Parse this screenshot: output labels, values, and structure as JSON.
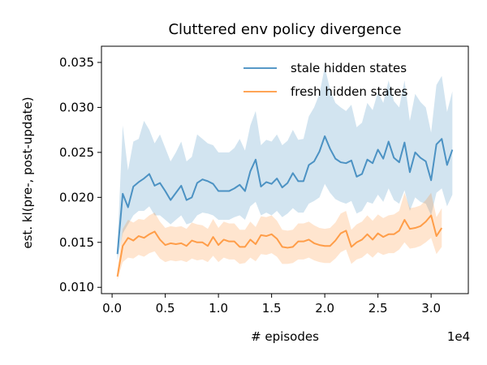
{
  "chart_data": {
    "type": "line",
    "title": "Cluttered env policy divergence",
    "xlabel": "# episodes",
    "ylabel": "est. kl(pre-, post-update)",
    "x_offset_label": "1e4",
    "xlim": [
      -0.1,
      3.35
    ],
    "ylim": [
      0.0093,
      0.0368
    ],
    "x_ticks": [
      0.0,
      0.5,
      1.0,
      1.5,
      2.0,
      2.5,
      3.0
    ],
    "x_tick_labels": [
      "0.0",
      "0.5",
      "1.0",
      "1.5",
      "2.0",
      "2.5",
      "3.0"
    ],
    "y_ticks": [
      0.01,
      0.015,
      0.02,
      0.025,
      0.03,
      0.035
    ],
    "y_tick_labels": [
      "0.010",
      "0.015",
      "0.020",
      "0.025",
      "0.030",
      "0.035"
    ],
    "grid": false,
    "legend_position": "top-right",
    "series": [
      {
        "name": "stale hidden states",
        "color": "#1f77b4",
        "line_alpha": 0.75,
        "band_alpha": 0.2,
        "x": [
          0.05,
          0.1,
          0.15,
          0.2,
          0.25,
          0.3,
          0.35,
          0.4,
          0.45,
          0.5,
          0.55,
          0.6,
          0.65,
          0.7,
          0.75,
          0.8,
          0.85,
          0.9,
          0.95,
          1.0,
          1.05,
          1.1,
          1.15,
          1.2,
          1.25,
          1.3,
          1.35,
          1.4,
          1.45,
          1.5,
          1.55,
          1.6,
          1.65,
          1.7,
          1.75,
          1.8,
          1.85,
          1.9,
          1.95,
          2.0,
          2.05,
          2.1,
          2.15,
          2.2,
          2.25,
          2.3,
          2.35,
          2.4,
          2.45,
          2.5,
          2.55,
          2.6,
          2.65,
          2.7,
          2.75,
          2.8,
          2.85,
          2.9,
          2.95,
          3.0,
          3.05,
          3.1,
          3.15,
          3.2
        ],
        "y": [
          0.0137,
          0.0204,
          0.0189,
          0.0212,
          0.0217,
          0.0221,
          0.0226,
          0.0213,
          0.0216,
          0.0207,
          0.0197,
          0.0205,
          0.0213,
          0.0197,
          0.02,
          0.0216,
          0.022,
          0.0218,
          0.0215,
          0.0207,
          0.0207,
          0.0207,
          0.021,
          0.0214,
          0.0207,
          0.0229,
          0.0242,
          0.0212,
          0.0217,
          0.0215,
          0.0221,
          0.0211,
          0.0216,
          0.0227,
          0.0218,
          0.0218,
          0.0236,
          0.024,
          0.0251,
          0.0268,
          0.0254,
          0.0243,
          0.0239,
          0.0238,
          0.0241,
          0.0223,
          0.0226,
          0.0242,
          0.0238,
          0.0253,
          0.0243,
          0.0262,
          0.0244,
          0.0239,
          0.0261,
          0.0228,
          0.025,
          0.0244,
          0.024,
          0.0219,
          0.0259,
          0.0265,
          0.0236,
          0.0253
        ],
        "lower": [
          0.013,
          0.016,
          0.017,
          0.018,
          0.0185,
          0.0185,
          0.019,
          0.018,
          0.018,
          0.0175,
          0.017,
          0.0175,
          0.018,
          0.017,
          0.0172,
          0.018,
          0.0183,
          0.0182,
          0.018,
          0.0175,
          0.0175,
          0.0175,
          0.0178,
          0.018,
          0.0175,
          0.019,
          0.0195,
          0.018,
          0.0183,
          0.018,
          0.0185,
          0.0178,
          0.0182,
          0.0188,
          0.0183,
          0.0183,
          0.0193,
          0.0196,
          0.02,
          0.0215,
          0.0205,
          0.0198,
          0.0195,
          0.0193,
          0.0196,
          0.0182,
          0.0185,
          0.0195,
          0.0193,
          0.0203,
          0.0195,
          0.021,
          0.0197,
          0.0193,
          0.0208,
          0.0185,
          0.02,
          0.0195,
          0.0193,
          0.018,
          0.0205,
          0.021,
          0.019,
          0.0203
        ],
        "upper": [
          0.0145,
          0.028,
          0.023,
          0.0262,
          0.0265,
          0.0285,
          0.0275,
          0.026,
          0.027,
          0.0255,
          0.024,
          0.025,
          0.0262,
          0.024,
          0.0245,
          0.027,
          0.0265,
          0.026,
          0.0258,
          0.025,
          0.025,
          0.025,
          0.0255,
          0.0265,
          0.0252,
          0.028,
          0.0296,
          0.0258,
          0.0264,
          0.0262,
          0.027,
          0.0258,
          0.0263,
          0.0275,
          0.0264,
          0.0265,
          0.029,
          0.03,
          0.0315,
          0.0345,
          0.032,
          0.0305,
          0.03,
          0.0296,
          0.0303,
          0.0278,
          0.0283,
          0.0305,
          0.0297,
          0.0317,
          0.0305,
          0.033,
          0.0307,
          0.03,
          0.033,
          0.0285,
          0.0315,
          0.0306,
          0.03,
          0.0272,
          0.0325,
          0.0335,
          0.0295,
          0.0318
        ]
      },
      {
        "name": "fresh hidden states",
        "color": "#ff7f0e",
        "line_alpha": 0.7,
        "band_alpha": 0.2,
        "x": [
          0.05,
          0.1,
          0.15,
          0.2,
          0.25,
          0.3,
          0.35,
          0.4,
          0.45,
          0.5,
          0.55,
          0.6,
          0.65,
          0.7,
          0.75,
          0.8,
          0.85,
          0.9,
          0.95,
          1.0,
          1.05,
          1.1,
          1.15,
          1.2,
          1.25,
          1.3,
          1.35,
          1.4,
          1.45,
          1.5,
          1.55,
          1.6,
          1.65,
          1.7,
          1.75,
          1.8,
          1.85,
          1.9,
          1.95,
          2.0,
          2.05,
          2.1,
          2.15,
          2.2,
          2.25,
          2.3,
          2.35,
          2.4,
          2.45,
          2.5,
          2.55,
          2.6,
          2.65,
          2.7,
          2.75,
          2.8,
          2.85,
          2.9,
          2.95,
          3.0,
          3.05,
          3.1
        ],
        "y": [
          0.0112,
          0.0146,
          0.0155,
          0.0152,
          0.0157,
          0.0155,
          0.0159,
          0.0162,
          0.0153,
          0.0147,
          0.0149,
          0.0148,
          0.0149,
          0.0146,
          0.0152,
          0.015,
          0.015,
          0.0146,
          0.0156,
          0.0147,
          0.0153,
          0.0151,
          0.0151,
          0.0145,
          0.0145,
          0.0153,
          0.0148,
          0.0158,
          0.0157,
          0.0159,
          0.0154,
          0.0145,
          0.0144,
          0.0145,
          0.0151,
          0.0151,
          0.0153,
          0.0149,
          0.0147,
          0.0146,
          0.0146,
          0.0152,
          0.016,
          0.0163,
          0.0145,
          0.015,
          0.0153,
          0.0159,
          0.0153,
          0.016,
          0.0156,
          0.0159,
          0.0159,
          0.0163,
          0.0175,
          0.0165,
          0.0166,
          0.0168,
          0.0173,
          0.018,
          0.0157,
          0.0166
        ],
        "lower": [
          0.0108,
          0.0128,
          0.0133,
          0.0132,
          0.0136,
          0.0134,
          0.0138,
          0.014,
          0.0132,
          0.0128,
          0.013,
          0.0129,
          0.013,
          0.0128,
          0.0132,
          0.013,
          0.0131,
          0.0128,
          0.0135,
          0.0128,
          0.0133,
          0.0131,
          0.0131,
          0.0126,
          0.0127,
          0.0133,
          0.0129,
          0.0137,
          0.0136,
          0.0138,
          0.0134,
          0.0126,
          0.0126,
          0.0127,
          0.0131,
          0.0131,
          0.0133,
          0.013,
          0.0128,
          0.0127,
          0.0127,
          0.0132,
          0.0139,
          0.0142,
          0.0126,
          0.0131,
          0.0133,
          0.0138,
          0.0133,
          0.0139,
          0.0136,
          0.0138,
          0.0138,
          0.0142,
          0.015,
          0.0143,
          0.0144,
          0.0146,
          0.015,
          0.0155,
          0.0137,
          0.0145
        ],
        "upper": [
          0.0118,
          0.0165,
          0.0175,
          0.0172,
          0.0176,
          0.0175,
          0.018,
          0.0183,
          0.0173,
          0.0166,
          0.0168,
          0.0167,
          0.0168,
          0.0165,
          0.0172,
          0.017,
          0.0169,
          0.0165,
          0.0176,
          0.0166,
          0.0173,
          0.0171,
          0.0171,
          0.0164,
          0.0164,
          0.0173,
          0.0167,
          0.0179,
          0.0178,
          0.018,
          0.0174,
          0.0164,
          0.0163,
          0.0164,
          0.0171,
          0.0171,
          0.0173,
          0.0169,
          0.0166,
          0.0165,
          0.0166,
          0.0172,
          0.0182,
          0.0185,
          0.0164,
          0.017,
          0.0173,
          0.018,
          0.0174,
          0.0181,
          0.0177,
          0.018,
          0.0181,
          0.0185,
          0.0205,
          0.0188,
          0.0189,
          0.0191,
          0.0197,
          0.0205,
          0.0178,
          0.0188
        ]
      }
    ]
  }
}
